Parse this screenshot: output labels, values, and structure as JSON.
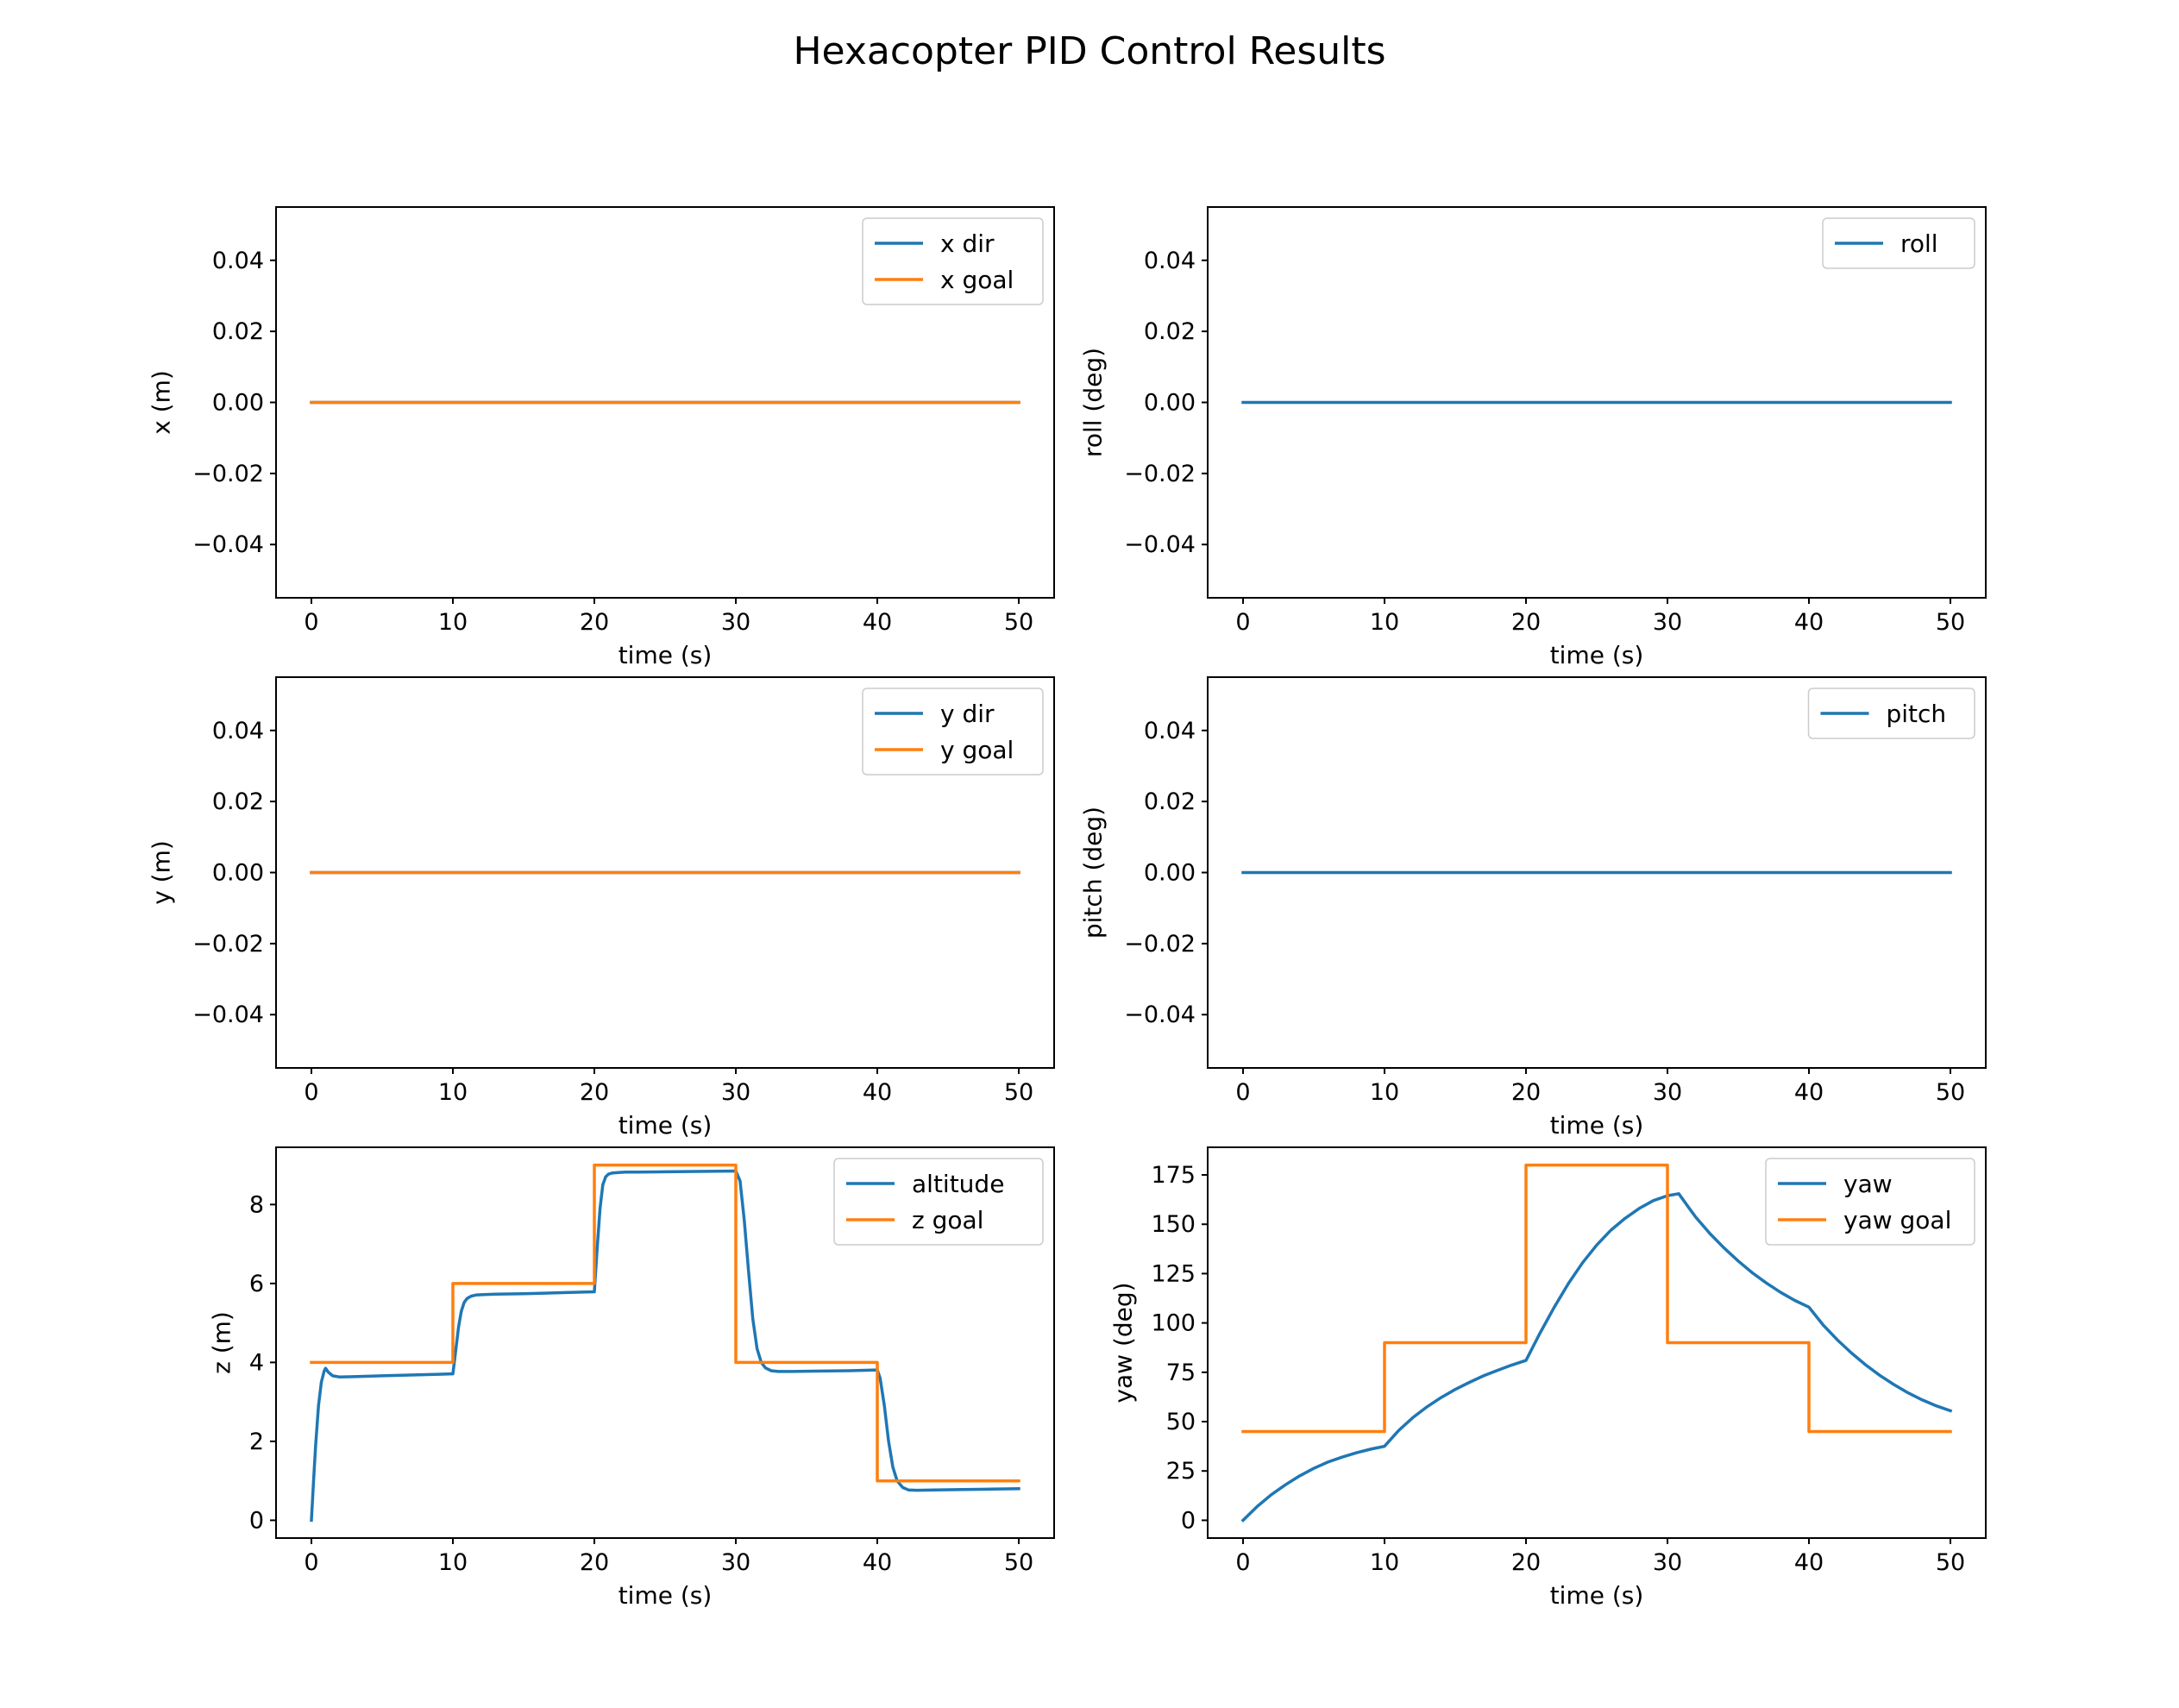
{
  "figure": {
    "title": "Hexacopter PID Control Results"
  },
  "colors": {
    "series_blue": "#1f77b4",
    "series_orange": "#ff7f0e"
  },
  "chart_data": [
    {
      "id": "x",
      "type": "line",
      "title": "",
      "xlabel": "time (s)",
      "ylabel": "x (m)",
      "xlim": [
        -2.5,
        52.5
      ],
      "ylim": [
        -0.055,
        0.055
      ],
      "xticks": [
        0,
        10,
        20,
        30,
        40,
        50
      ],
      "xtick_labels": [
        "0",
        "10",
        "20",
        "30",
        "40",
        "50"
      ],
      "yticks": [
        -0.04,
        -0.02,
        0.0,
        0.02,
        0.04
      ],
      "ytick_labels": [
        "−0.04",
        "−0.02",
        "0.00",
        "0.02",
        "0.04"
      ],
      "legend_position": "upper right",
      "grid": false,
      "series": [
        {
          "name": "x dir",
          "color": "#1f77b4",
          "x": [
            0,
            50
          ],
          "y": [
            0,
            0
          ]
        },
        {
          "name": "x goal",
          "color": "#ff7f0e",
          "x": [
            0,
            50
          ],
          "y": [
            0,
            0
          ]
        }
      ]
    },
    {
      "id": "roll",
      "type": "line",
      "title": "",
      "xlabel": "time (s)",
      "ylabel": "roll (deg)",
      "xlim": [
        -2.5,
        52.5
      ],
      "ylim": [
        -0.055,
        0.055
      ],
      "xticks": [
        0,
        10,
        20,
        30,
        40,
        50
      ],
      "xtick_labels": [
        "0",
        "10",
        "20",
        "30",
        "40",
        "50"
      ],
      "yticks": [
        -0.04,
        -0.02,
        0.0,
        0.02,
        0.04
      ],
      "ytick_labels": [
        "−0.04",
        "−0.02",
        "0.00",
        "0.02",
        "0.04"
      ],
      "legend_position": "upper right",
      "grid": false,
      "series": [
        {
          "name": "roll",
          "color": "#1f77b4",
          "x": [
            0,
            50
          ],
          "y": [
            0,
            0
          ]
        }
      ]
    },
    {
      "id": "y",
      "type": "line",
      "title": "",
      "xlabel": "time (s)",
      "ylabel": "y (m)",
      "xlim": [
        -2.5,
        52.5
      ],
      "ylim": [
        -0.055,
        0.055
      ],
      "xticks": [
        0,
        10,
        20,
        30,
        40,
        50
      ],
      "xtick_labels": [
        "0",
        "10",
        "20",
        "30",
        "40",
        "50"
      ],
      "yticks": [
        -0.04,
        -0.02,
        0.0,
        0.02,
        0.04
      ],
      "ytick_labels": [
        "−0.04",
        "−0.02",
        "0.00",
        "0.02",
        "0.04"
      ],
      "legend_position": "upper right",
      "grid": false,
      "series": [
        {
          "name": "y dir",
          "color": "#1f77b4",
          "x": [
            0,
            50
          ],
          "y": [
            0,
            0
          ]
        },
        {
          "name": "y goal",
          "color": "#ff7f0e",
          "x": [
            0,
            50
          ],
          "y": [
            0,
            0
          ]
        }
      ]
    },
    {
      "id": "pitch",
      "type": "line",
      "title": "",
      "xlabel": "time (s)",
      "ylabel": "pitch (deg)",
      "xlim": [
        -2.5,
        52.5
      ],
      "ylim": [
        -0.055,
        0.055
      ],
      "xticks": [
        0,
        10,
        20,
        30,
        40,
        50
      ],
      "xtick_labels": [
        "0",
        "10",
        "20",
        "30",
        "40",
        "50"
      ],
      "yticks": [
        -0.04,
        -0.02,
        0.0,
        0.02,
        0.04
      ],
      "ytick_labels": [
        "−0.04",
        "−0.02",
        "0.00",
        "0.02",
        "0.04"
      ],
      "legend_position": "upper right",
      "grid": false,
      "series": [
        {
          "name": "pitch",
          "color": "#1f77b4",
          "x": [
            0,
            50
          ],
          "y": [
            0,
            0
          ]
        }
      ]
    },
    {
      "id": "z",
      "type": "line",
      "title": "",
      "xlabel": "time (s)",
      "ylabel": "z (m)",
      "xlim": [
        -2.5,
        52.5
      ],
      "ylim": [
        -0.45,
        9.45
      ],
      "xticks": [
        0,
        10,
        20,
        30,
        40,
        50
      ],
      "xtick_labels": [
        "0",
        "10",
        "20",
        "30",
        "40",
        "50"
      ],
      "yticks": [
        0,
        2,
        4,
        6,
        8
      ],
      "ytick_labels": [
        "0",
        "2",
        "4",
        "6",
        "8"
      ],
      "legend_position": "upper right",
      "grid": false,
      "series": [
        {
          "name": "altitude",
          "color": "#1f77b4",
          "x": [
            0,
            0.15,
            0.3,
            0.5,
            0.7,
            0.9,
            1.0,
            1.2,
            1.5,
            2.0,
            3.0,
            5.0,
            7.0,
            9.0,
            10.0,
            10.2,
            10.4,
            10.6,
            10.8,
            11.0,
            11.3,
            11.7,
            12.2,
            13.0,
            15.0,
            18.0,
            20.0,
            20.2,
            20.4,
            20.6,
            20.8,
            21.0,
            21.3,
            21.7,
            22.2,
            23.0,
            25.0,
            28.0,
            30.0,
            30.3,
            30.6,
            30.9,
            31.2,
            31.5,
            31.8,
            32.1,
            32.5,
            33.0,
            34.0,
            36.0,
            38.0,
            40.0,
            40.2,
            40.5,
            40.8,
            41.1,
            41.4,
            41.8,
            42.2,
            42.8,
            44.0,
            46.0,
            48.0,
            50.0
          ],
          "y": [
            0.0,
            1.0,
            1.9,
            2.9,
            3.5,
            3.78,
            3.85,
            3.75,
            3.66,
            3.63,
            3.64,
            3.66,
            3.68,
            3.7,
            3.71,
            4.3,
            4.9,
            5.3,
            5.52,
            5.62,
            5.68,
            5.71,
            5.72,
            5.73,
            5.74,
            5.77,
            5.79,
            6.9,
            7.9,
            8.5,
            8.7,
            8.77,
            8.8,
            8.81,
            8.82,
            8.82,
            8.83,
            8.84,
            8.85,
            8.6,
            7.6,
            6.3,
            5.1,
            4.35,
            4.0,
            3.86,
            3.79,
            3.77,
            3.77,
            3.78,
            3.79,
            3.81,
            3.6,
            2.9,
            2.0,
            1.35,
            1.0,
            0.83,
            0.77,
            0.76,
            0.77,
            0.78,
            0.79,
            0.8
          ]
        },
        {
          "name": "z goal",
          "color": "#ff7f0e",
          "x": [
            0,
            10,
            10,
            20,
            20,
            30,
            30,
            40,
            40,
            50
          ],
          "y": [
            4,
            4,
            6,
            6,
            9,
            9,
            4,
            4,
            1,
            1
          ]
        }
      ]
    },
    {
      "id": "yaw",
      "type": "line",
      "title": "",
      "xlabel": "time (s)",
      "ylabel": "yaw (deg)",
      "xlim": [
        -2.5,
        52.5
      ],
      "ylim": [
        -9,
        189
      ],
      "xticks": [
        0,
        10,
        20,
        30,
        40,
        50
      ],
      "xtick_labels": [
        "0",
        "10",
        "20",
        "30",
        "40",
        "50"
      ],
      "yticks": [
        0,
        25,
        50,
        75,
        100,
        125,
        150,
        175
      ],
      "ytick_labels": [
        "0",
        "25",
        "50",
        "75",
        "100",
        "125",
        "150",
        "175"
      ],
      "legend_position": "upper right",
      "grid": false,
      "series": [
        {
          "name": "yaw",
          "color": "#1f77b4",
          "x": [
            0,
            1,
            2,
            3,
            4,
            5,
            6,
            7,
            8,
            9,
            10,
            11,
            12,
            13,
            14,
            15,
            16,
            17,
            18,
            19,
            20,
            21,
            22,
            23,
            24,
            25,
            26,
            27,
            28,
            29,
            30,
            30.8,
            31.5,
            32,
            33,
            34,
            35,
            36,
            37,
            38,
            39,
            40,
            40.5,
            41,
            42,
            43,
            44,
            45,
            46,
            47,
            48,
            49,
            50
          ],
          "y": [
            0,
            7,
            13,
            18,
            22.5,
            26.3,
            29.5,
            32,
            34.2,
            36,
            37.5,
            45.5,
            52,
            57.5,
            62.2,
            66.3,
            69.9,
            73.2,
            76,
            78.7,
            81,
            95,
            108,
            120,
            130.5,
            139.5,
            147,
            153,
            158,
            162,
            164.5,
            165.5,
            158.5,
            153.6,
            145.3,
            138,
            131.4,
            125.4,
            120.2,
            115.5,
            111.4,
            108,
            103.5,
            99,
            91.5,
            84.8,
            78.8,
            73.5,
            68.8,
            64.6,
            61,
            58,
            55.5
          ]
        },
        {
          "name": "yaw goal",
          "color": "#ff7f0e",
          "x": [
            0,
            10,
            10,
            20,
            20,
            30,
            30,
            40,
            40,
            50
          ],
          "y": [
            45,
            45,
            90,
            90,
            180,
            180,
            90,
            90,
            45,
            45
          ]
        }
      ]
    }
  ]
}
